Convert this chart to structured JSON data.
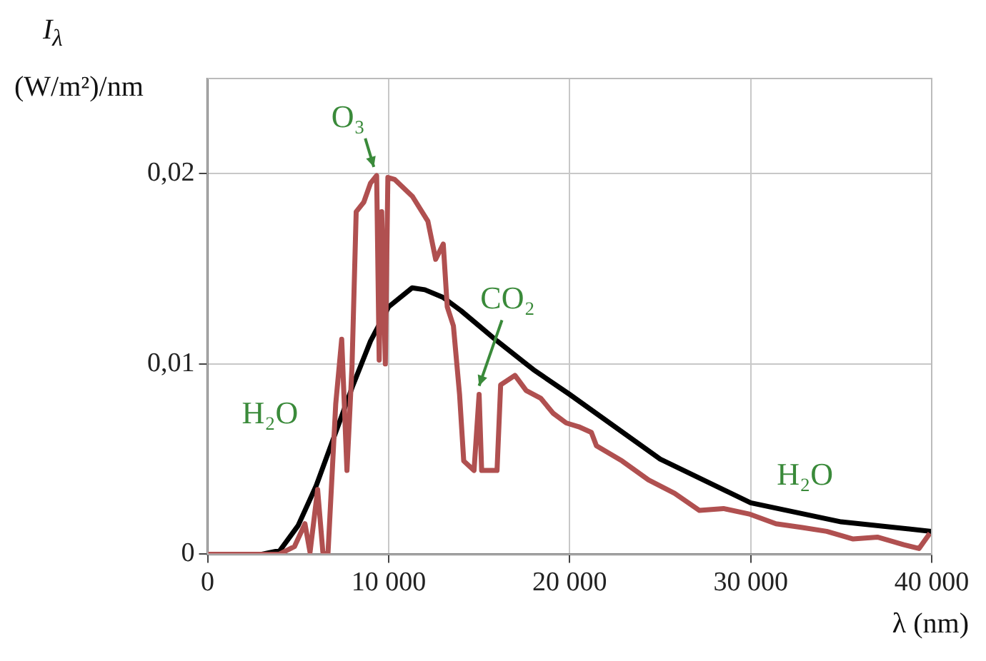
{
  "chart_data": {
    "type": "line",
    "xlabel": "λ (nm)",
    "ylabel": "I$_{λ}$ (W/m²)/nm",
    "xlim": [
      0,
      40000
    ],
    "xticks": [
      0,
      {
        "value": 10000,
        "label": "10 000"
      },
      {
        "value": 20000,
        "label": "20 000"
      },
      {
        "value": 30000,
        "label": "30 000"
      },
      {
        "value": 40000,
        "label": "40 000"
      }
    ],
    "ylim": [
      0,
      0.025
    ],
    "yticks": [
      0,
      {
        "value": 0.01,
        "label": "0,01"
      },
      {
        "value": 0.02,
        "label": "0,02"
      }
    ],
    "grid": true,
    "marker": "none",
    "line_style": "solid",
    "series": [
      {
        "color": "#b05050",
        "x": [
          0,
          3960,
          4800,
          5380,
          5660,
          6080,
          6370,
          6650,
          7080,
          7410,
          7700,
          7980,
          8210,
          8630,
          9000,
          9340,
          9480,
          9620,
          9820,
          9960,
          10330,
          11320,
          12170,
          12600,
          13020,
          13240,
          13580,
          13920,
          14150,
          14720,
          15000,
          15140,
          15990,
          16190,
          16980,
          17600,
          18400,
          19100,
          19810,
          20500,
          21200,
          21480,
          22900,
          24360,
          25800,
          27170,
          28500,
          29970,
          31400,
          32850,
          34200,
          35660,
          37000,
          38460,
          39300,
          39900
        ],
        "values": [
          0,
          0,
          0.0004,
          0.0016,
          0.0001,
          0.0034,
          0.0001,
          0,
          0.0079,
          0.0113,
          0.0044,
          0.0099,
          0.018,
          0.0185,
          0.0195,
          0.0199,
          0.0102,
          0.018,
          0.01,
          0.0198,
          0.0197,
          0.0188,
          0.0175,
          0.0155,
          0.0163,
          0.013,
          0.012,
          0.0084,
          0.0049,
          0.0044,
          0.0084,
          0.0044,
          0.0044,
          0.0089,
          0.0094,
          0.0086,
          0.0082,
          0.0074,
          0.0069,
          0.0067,
          0.0064,
          0.0057,
          0.0049,
          0.0039,
          0.0032,
          0.0023,
          0.0024,
          0.0021,
          0.0016,
          0.0014,
          0.0012,
          0.0008,
          0.0009,
          0.0005,
          0.0003,
          0.0011
        ]
      },
      {
        "color": "#000000",
        "x": [
          0,
          3000,
          4000,
          5000,
          6000,
          7000,
          8000,
          9000,
          10000,
          11300,
          12000,
          13000,
          14000,
          15000,
          16000,
          18000,
          20000,
          25000,
          30000,
          35000,
          40000
        ],
        "values": [
          0,
          0,
          0.0002,
          0.0015,
          0.0036,
          0.0062,
          0.0088,
          0.0112,
          0.013,
          0.014,
          0.0139,
          0.0135,
          0.0128,
          0.012,
          0.0112,
          0.0097,
          0.0084,
          0.005,
          0.0027,
          0.0017,
          0.0012
        ]
      }
    ],
    "annotations": [
      {
        "text": "O₃",
        "x": 9500,
        "y": 0.0199
      },
      {
        "text": "CO₂",
        "x": 15000,
        "y": 0.0084
      },
      {
        "text": "H₂O",
        "x": 7000,
        "y": 0.0079
      },
      {
        "text": "H₂O",
        "x": 33000,
        "y": 0.0017
      }
    ]
  }
}
